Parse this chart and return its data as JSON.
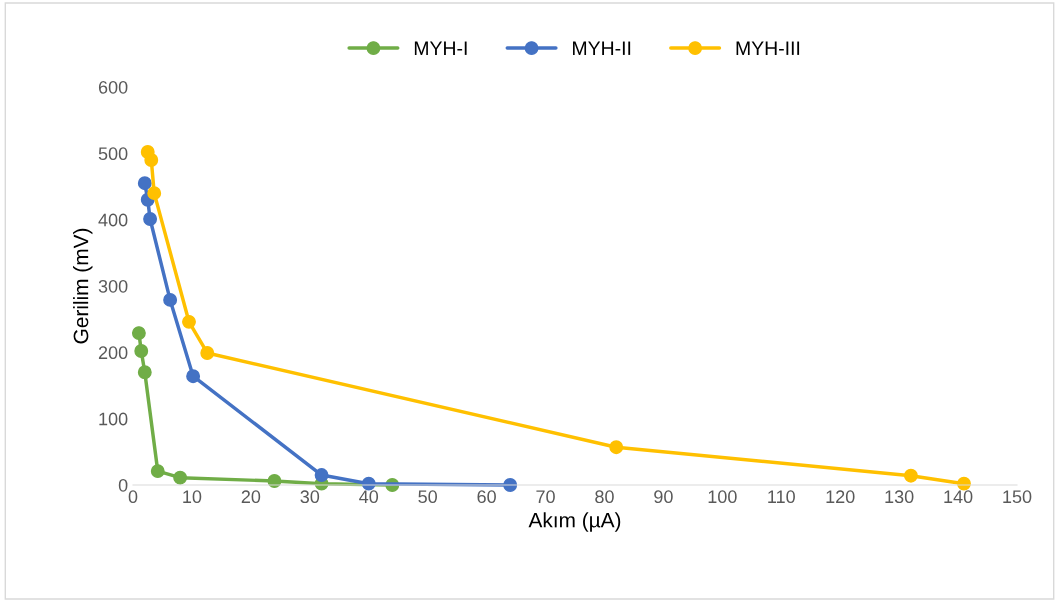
{
  "chart_data": {
    "type": "line",
    "xlabel": "Akım (µA)",
    "ylabel": "Gerilim (mV)",
    "xlim": [
      0,
      150
    ],
    "ylim": [
      0,
      600
    ],
    "xticks": [
      0,
      10,
      20,
      30,
      40,
      50,
      60,
      70,
      80,
      90,
      100,
      110,
      120,
      130,
      140,
      150
    ],
    "yticks": [
      0,
      100,
      200,
      300,
      400,
      500,
      600
    ],
    "grid": false,
    "legend": "top",
    "marker": "circle",
    "line_style": "solid",
    "series": [
      {
        "name": "MYH-I",
        "color": "#70ad47",
        "x": [
          1.0,
          1.4,
          2.0,
          4.2,
          8.0,
          24,
          32,
          44
        ],
        "values": [
          229,
          202,
          170,
          21,
          11,
          6,
          2,
          0
        ]
      },
      {
        "name": "MYH-II",
        "color": "#4472c4",
        "x": [
          2.0,
          2.5,
          2.9,
          6.3,
          10.2,
          32,
          40,
          64
        ],
        "values": [
          455,
          430,
          401,
          279,
          164,
          15,
          2,
          0
        ]
      },
      {
        "name": "MYH-III",
        "color": "#ffc000",
        "x": [
          2.5,
          3.1,
          3.6,
          9.5,
          12.6,
          82,
          132,
          141
        ],
        "values": [
          502,
          490,
          440,
          246,
          199,
          57,
          14,
          2
        ]
      }
    ]
  }
}
